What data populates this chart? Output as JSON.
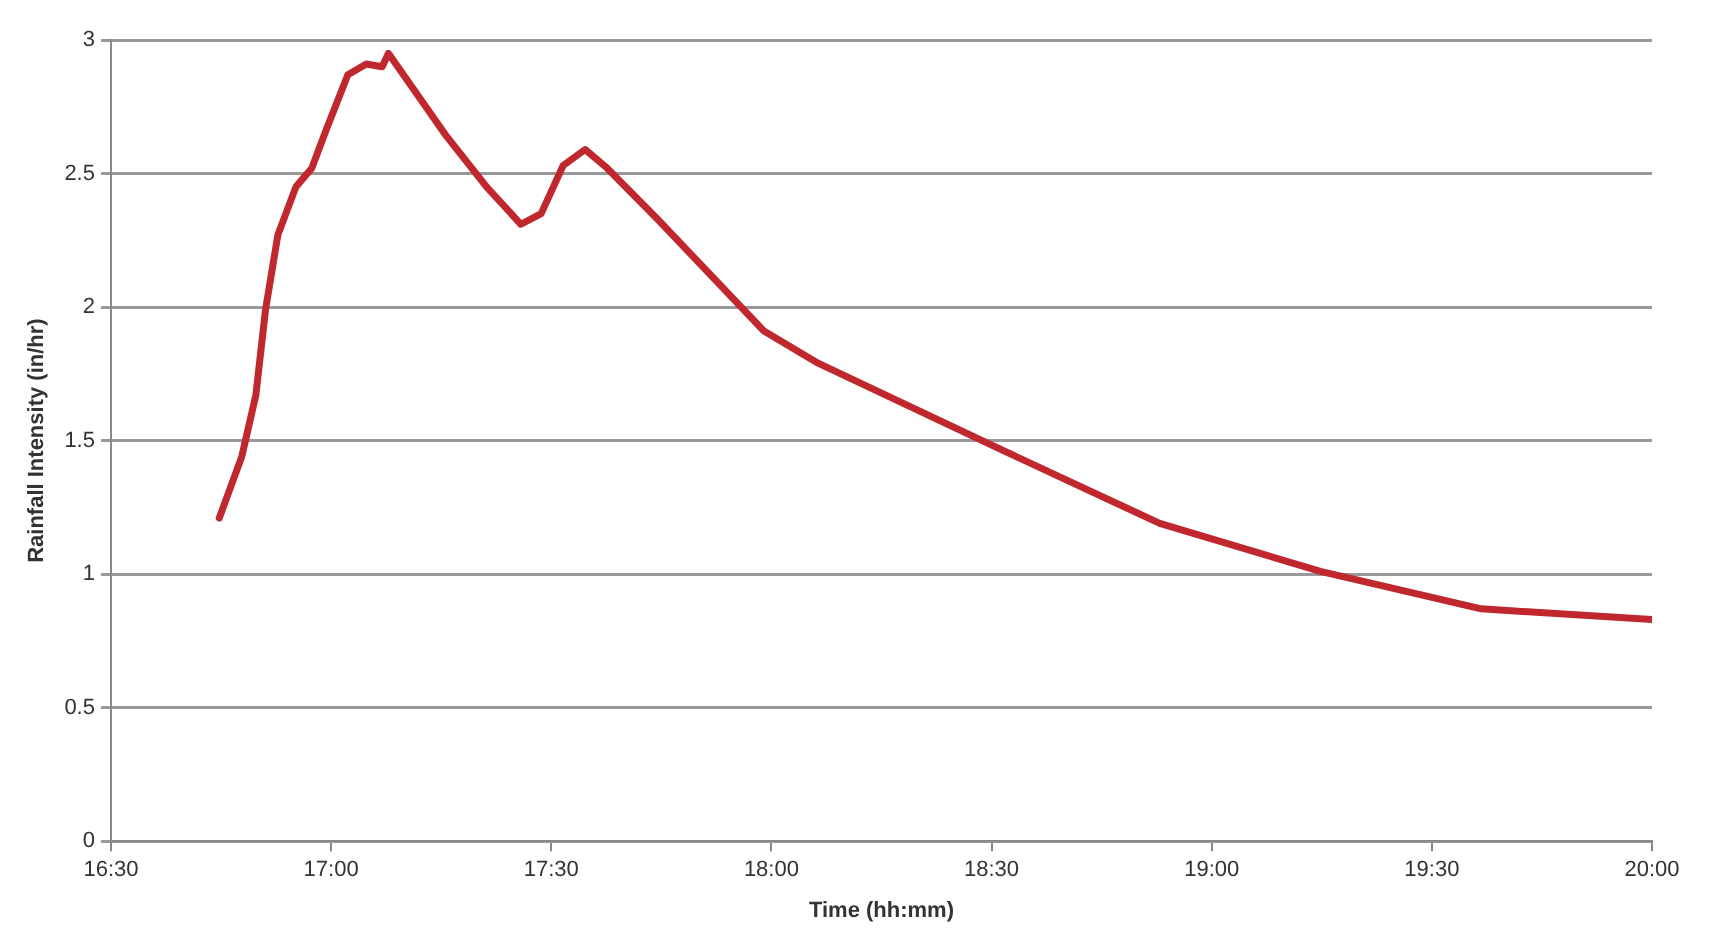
{
  "chart_data": {
    "type": "line",
    "xlabel": "Time (hh:mm)",
    "ylabel": "Rainfall Intensity (in/hr)",
    "series": [
      {
        "color": "#c0282e",
        "x": [
          16.746,
          16.797,
          16.829,
          16.851,
          16.879,
          16.92,
          16.956,
          16.988,
          17.038,
          17.08,
          17.116,
          17.13,
          17.262,
          17.353,
          17.431,
          17.477,
          17.527,
          17.577,
          17.627,
          17.741,
          17.983,
          18.106,
          18.504,
          18.882,
          19.247,
          19.612,
          20.0
        ],
        "values": [
          1.21,
          1.44,
          1.67,
          1.99,
          2.27,
          2.45,
          2.52,
          2.66,
          2.87,
          2.91,
          2.9,
          2.95,
          2.64,
          2.45,
          2.31,
          2.35,
          2.53,
          2.59,
          2.52,
          2.33,
          1.91,
          1.79,
          1.48,
          1.19,
          1.01,
          0.87,
          0.83
        ]
      }
    ],
    "xlim": [
      16.5,
      20
    ],
    "xticks": [
      {
        "value": 16.5,
        "label": "16:30"
      },
      {
        "value": 17,
        "label": "17:00"
      },
      {
        "value": 17.5,
        "label": "17:30"
      },
      {
        "value": 18,
        "label": "18:00"
      },
      {
        "value": 18.5,
        "label": "18:30"
      },
      {
        "value": 19,
        "label": "19:00"
      },
      {
        "value": 19.5,
        "label": "19:30"
      },
      {
        "value": 20,
        "label": "20:00"
      }
    ],
    "ylim": [
      0,
      3
    ],
    "yticks": [
      0,
      0.5,
      1,
      1.5,
      2,
      2.5,
      3
    ],
    "grid": "y",
    "legend": false,
    "marker": "none",
    "line_style": "solid"
  }
}
